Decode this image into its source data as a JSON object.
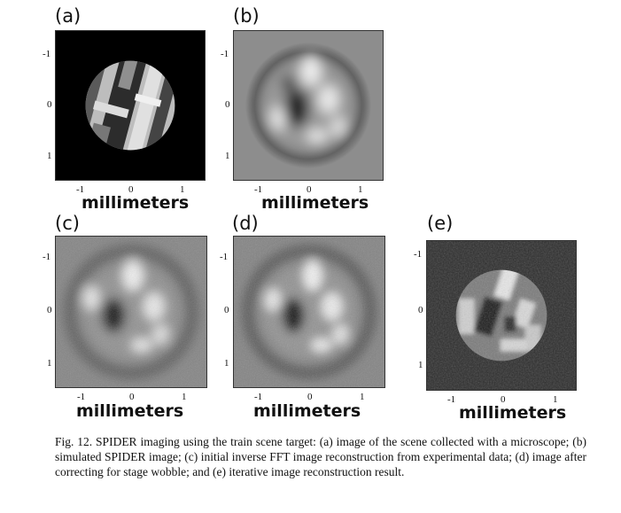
{
  "panels": [
    {
      "label": "(a)",
      "x_axis_label": "millimeters",
      "x_ticks": [
        "-1",
        "0",
        "1"
      ],
      "y_ticks": [
        "-1",
        "0",
        "1"
      ],
      "content": "microscope image of train scene"
    },
    {
      "label": "(b)",
      "x_axis_label": "millimeters",
      "x_ticks": [
        "-1",
        "0",
        "1"
      ],
      "y_ticks": [
        "-1",
        "0",
        "1"
      ],
      "content": "simulated SPIDER image"
    },
    {
      "label": "(c)",
      "x_axis_label": "millimeters",
      "x_ticks": [
        "-1",
        "0",
        "1"
      ],
      "y_ticks": [
        "-1",
        "0",
        "1"
      ],
      "content": "initial inverse FFT reconstruction"
    },
    {
      "label": "(d)",
      "x_axis_label": "millimeters",
      "x_ticks": [
        "-1",
        "0",
        "1"
      ],
      "y_ticks": [
        "-1",
        "0",
        "1"
      ],
      "content": "stage wobble corrected image"
    },
    {
      "label": "(e)",
      "x_axis_label": "millimeters",
      "x_ticks": [
        "-1",
        "0",
        "1"
      ],
      "y_ticks": [
        "-1",
        "0",
        "1"
      ],
      "content": "iterative reconstruction result"
    }
  ],
  "caption": "Fig. 12. SPIDER imaging using the train scene target: (a) image of the scene collected with a microscope; (b) simulated SPIDER image; (c) initial inverse FFT image reconstruction from experimental data; (d) image after correcting for stage wobble; and (e) iterative image reconstruction result.",
  "colors": {
    "background": "#000000",
    "gray_field": "#8a8a8a",
    "dark_field": "#2a2a2a"
  }
}
